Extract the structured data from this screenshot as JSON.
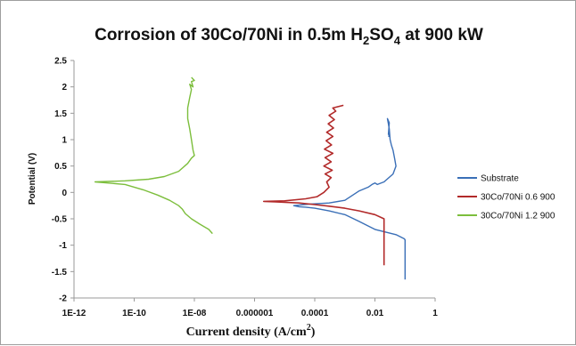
{
  "chart_data": {
    "type": "line",
    "title": {
      "main": "Corrosion of 30Co/70Ni in 0.5m H",
      "sub1": "2",
      "mid": "SO",
      "sub2": "4",
      "end": " at 900 kW"
    },
    "xlabel": {
      "main": "Current density (A/cm",
      "sup": "2",
      "end": ")"
    },
    "ylabel": "Potential (V)",
    "x_scale": "log",
    "xlim": [
      1e-12,
      1
    ],
    "ylim": [
      -2,
      2.5
    ],
    "x_ticks": [
      {
        "value": 1e-12,
        "label": "1E-12"
      },
      {
        "value": 1e-10,
        "label": "1E-10"
      },
      {
        "value": 1e-08,
        "label": "1E-08"
      },
      {
        "value": 1e-06,
        "label": "0.000001"
      },
      {
        "value": 0.0001,
        "label": "0.0001"
      },
      {
        "value": 0.01,
        "label": "0.01"
      },
      {
        "value": 1,
        "label": "1"
      }
    ],
    "y_ticks": [
      {
        "value": 2.5,
        "label": "2.5"
      },
      {
        "value": 2,
        "label": "2"
      },
      {
        "value": 1.5,
        "label": "1.5"
      },
      {
        "value": 1,
        "label": "1"
      },
      {
        "value": 0.5,
        "label": "0.5"
      },
      {
        "value": 0,
        "label": "0"
      },
      {
        "value": -0.5,
        "label": "-0.5"
      },
      {
        "value": -1,
        "label": "-1"
      },
      {
        "value": -1.5,
        "label": "-1.5"
      },
      {
        "value": -2,
        "label": "-2"
      }
    ],
    "grid": false,
    "legend_position": "right",
    "series": [
      {
        "name": "Substrate",
        "color": "#3a6fb7",
        "points": [
          [
            0.1,
            -1.65
          ],
          [
            0.1,
            -0.9
          ],
          [
            0.095,
            -0.88
          ],
          [
            0.05,
            -0.8
          ],
          [
            0.01,
            -0.7
          ],
          [
            0.003,
            -0.55
          ],
          [
            0.001,
            -0.42
          ],
          [
            0.0003,
            -0.35
          ],
          [
            0.0001,
            -0.3
          ],
          [
            5e-05,
            -0.28
          ],
          [
            3e-05,
            -0.27
          ],
          [
            2e-05,
            -0.25
          ],
          [
            3e-05,
            -0.24
          ],
          [
            7e-05,
            -0.22
          ],
          [
            0.0003,
            -0.2
          ],
          [
            0.001,
            -0.15
          ],
          [
            0.003,
            0.03
          ],
          [
            0.006,
            0.1
          ],
          [
            0.008,
            0.15
          ],
          [
            0.01,
            0.18
          ],
          [
            0.012,
            0.15
          ],
          [
            0.02,
            0.2
          ],
          [
            0.04,
            0.35
          ],
          [
            0.05,
            0.5
          ],
          [
            0.045,
            0.65
          ],
          [
            0.04,
            0.8
          ],
          [
            0.035,
            0.9
          ],
          [
            0.032,
            1.0
          ],
          [
            0.03,
            1.2
          ],
          [
            0.028,
            1.3
          ],
          [
            0.026,
            1.4
          ],
          [
            0.03,
            1.32
          ],
          [
            0.028,
            1.1
          ],
          [
            0.03,
            1.15
          ],
          [
            0.029,
            1.05
          ]
        ]
      },
      {
        "name": "30Co/70Ni 0.6 900",
        "color": "#b22a2a",
        "points": [
          [
            0.02,
            -1.38
          ],
          [
            0.02,
            -0.5
          ],
          [
            0.01,
            -0.42
          ],
          [
            0.003,
            -0.35
          ],
          [
            0.001,
            -0.3
          ],
          [
            0.0003,
            -0.26
          ],
          [
            0.0001,
            -0.23
          ],
          [
            3e-05,
            -0.2
          ],
          [
            5e-06,
            -0.18
          ],
          [
            2e-06,
            -0.17
          ],
          [
            1e-05,
            -0.16
          ],
          [
            5e-05,
            -0.12
          ],
          [
            0.00012,
            -0.08
          ],
          [
            0.0002,
            0.0
          ],
          [
            0.0003,
            0.1
          ],
          [
            0.00025,
            0.2
          ],
          [
            0.00035,
            0.28
          ],
          [
            0.00022,
            0.35
          ],
          [
            0.00038,
            0.42
          ],
          [
            0.0002,
            0.5
          ],
          [
            0.00035,
            0.58
          ],
          [
            0.00022,
            0.66
          ],
          [
            0.0004,
            0.74
          ],
          [
            0.00021,
            0.82
          ],
          [
            0.00036,
            0.9
          ],
          [
            0.00024,
            0.98
          ],
          [
            0.0004,
            1.06
          ],
          [
            0.00025,
            1.14
          ],
          [
            0.00042,
            1.22
          ],
          [
            0.00028,
            1.3
          ],
          [
            0.00045,
            1.38
          ],
          [
            0.0003,
            1.46
          ],
          [
            0.0005,
            1.54
          ],
          [
            0.0004,
            1.6
          ],
          [
            0.0009,
            1.65
          ]
        ]
      },
      {
        "name": "30Co/70Ni 1.2 900",
        "color": "#7cbe3c",
        "points": [
          [
            4e-08,
            -0.78
          ],
          [
            3e-08,
            -0.7
          ],
          [
            1.5e-08,
            -0.6
          ],
          [
            8e-09,
            -0.5
          ],
          [
            5e-09,
            -0.4
          ],
          [
            4e-09,
            -0.32
          ],
          [
            3e-09,
            -0.25
          ],
          [
            1.5e-09,
            -0.15
          ],
          [
            6e-10,
            -0.05
          ],
          [
            2e-10,
            0.05
          ],
          [
            5e-11,
            0.15
          ],
          [
            5e-12,
            0.2
          ],
          [
            5e-11,
            0.22
          ],
          [
            3e-10,
            0.25
          ],
          [
            1e-09,
            0.3
          ],
          [
            3e-09,
            0.4
          ],
          [
            6e-09,
            0.55
          ],
          [
            8e-09,
            0.65
          ],
          [
            1e-08,
            0.7
          ],
          [
            9e-09,
            0.8
          ],
          [
            8e-09,
            1.0
          ],
          [
            7e-09,
            1.2
          ],
          [
            6e-09,
            1.4
          ],
          [
            6e-09,
            1.6
          ],
          [
            7e-09,
            1.8
          ],
          [
            8e-09,
            1.95
          ],
          [
            7e-09,
            2.05
          ],
          [
            9e-09,
            2.0
          ],
          [
            8e-09,
            2.1
          ],
          [
            1e-08,
            2.12
          ],
          [
            8e-09,
            2.18
          ]
        ]
      }
    ]
  }
}
